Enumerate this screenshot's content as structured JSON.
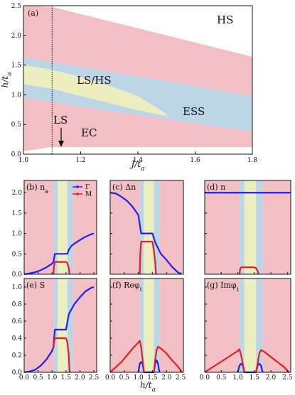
{
  "colors": {
    "pink": "#F2C0C4",
    "blue": "#BCD6E8",
    "yellow": "#EDEEC0",
    "gamma": "#1F1FEF",
    "m": "#E41E1E"
  },
  "chart_data": [
    {
      "id": "a",
      "type": "area",
      "panel_label": "(a)",
      "xlabel": "J/t_a",
      "ylabel": "h/t_a",
      "xlim": [
        1.0,
        1.8
      ],
      "ylim": [
        0.0,
        2.5
      ],
      "xticks": [
        "1.0",
        "1.2",
        "1.4",
        "1.6",
        "1.8"
      ],
      "yticks": [
        "0.0",
        "0.5",
        "1.0",
        "1.5",
        "2.0",
        "2.5"
      ],
      "vline_x": 1.1,
      "region_labels": [
        "HS",
        "LS/HS",
        "ESS",
        "EC",
        "LS"
      ],
      "boundaries": {
        "J": [
          1.0,
          1.1,
          1.2,
          1.3,
          1.4,
          1.5,
          1.6,
          1.7,
          1.8
        ],
        "pink_upper": [
          2.5,
          2.48,
          2.36,
          2.24,
          2.12,
          2.0,
          1.88,
          1.76,
          1.64
        ],
        "blue_upper": [
          1.63,
          1.55,
          1.47,
          1.39,
          1.31,
          1.23,
          1.15,
          1.06,
          0.98
        ],
        "blue_lower": [
          0.95,
          0.88,
          0.8,
          0.73,
          0.66,
          0.59,
          0.52,
          0.45,
          0.38
        ],
        "pink_lower": [
          0.05,
          0.12,
          0.12,
          0.12,
          0.12,
          0.12,
          0.12,
          0.12,
          0.12
        ]
      },
      "yellow_region": {
        "J": [
          1.0,
          1.1,
          1.2,
          1.3,
          1.4,
          1.5
        ],
        "upper": [
          1.5,
          1.42,
          1.3,
          1.15,
          0.98,
          0.68
        ],
        "lower": [
          1.18,
          1.1,
          0.98,
          0.86,
          0.74,
          0.64
        ]
      }
    },
    {
      "id": "b",
      "type": "line",
      "panel_label": "(b) n_a",
      "xlim": [
        0,
        2.6
      ],
      "ylim": [
        0,
        2.3
      ],
      "yticks": [
        "0.0",
        "0.5",
        "1.0",
        "1.5",
        "2.0"
      ],
      "legend": [
        "Γ",
        "M"
      ],
      "bands": [
        [
          0,
          1.05,
          "pink"
        ],
        [
          1.05,
          1.2,
          "blue"
        ],
        [
          1.2,
          1.55,
          "yellow"
        ],
        [
          1.55,
          1.75,
          "blue"
        ],
        [
          1.75,
          2.6,
          "pink"
        ]
      ],
      "series": [
        {
          "name": "Γ",
          "color": "gamma",
          "x": [
            0,
            0.2,
            0.4,
            0.6,
            0.8,
            1.0,
            1.05,
            1.1,
            1.5,
            1.55,
            1.6,
            1.7,
            1.8,
            2.0,
            2.2,
            2.4,
            2.5
          ],
          "y": [
            0,
            0.02,
            0.05,
            0.1,
            0.17,
            0.26,
            0.3,
            0.5,
            0.5,
            0.5,
            0.6,
            0.7,
            0.75,
            0.84,
            0.92,
            0.98,
            1.0
          ]
        },
        {
          "name": "M",
          "color": "m",
          "x": [
            1.05,
            1.07,
            1.1,
            1.5,
            1.55,
            1.6,
            1.63
          ],
          "y": [
            0,
            0.2,
            0.3,
            0.3,
            0.27,
            0.15,
            0
          ]
        }
      ]
    },
    {
      "id": "c",
      "type": "line",
      "panel_label": "(c) Δn",
      "xlim": [
        0,
        2.6
      ],
      "ylim": [
        0,
        2.3
      ],
      "bands": [
        [
          0,
          1.05,
          "pink"
        ],
        [
          1.05,
          1.2,
          "blue"
        ],
        [
          1.2,
          1.55,
          "yellow"
        ],
        [
          1.55,
          1.75,
          "blue"
        ],
        [
          1.75,
          2.6,
          "pink"
        ]
      ],
      "series": [
        {
          "name": "Γ",
          "color": "gamma",
          "x": [
            0,
            0.2,
            0.4,
            0.6,
            0.8,
            1.0,
            1.1,
            1.5,
            1.6,
            1.8,
            2.0,
            2.2,
            2.4,
            2.5
          ],
          "y": [
            2.0,
            1.98,
            1.9,
            1.8,
            1.65,
            1.45,
            1.0,
            1.0,
            0.78,
            0.5,
            0.35,
            0.18,
            0.05,
            0.0
          ]
        },
        {
          "name": "M",
          "color": "m",
          "x": [
            1.05,
            1.07,
            1.1,
            1.5,
            1.55,
            1.6,
            1.63
          ],
          "y": [
            0,
            0.5,
            0.8,
            0.8,
            0.6,
            0.3,
            0
          ]
        }
      ]
    },
    {
      "id": "d",
      "type": "line",
      "panel_label": "(d) n",
      "xlim": [
        0,
        2.6
      ],
      "ylim": [
        0,
        2.3
      ],
      "bands": [
        [
          0,
          1.05,
          "pink"
        ],
        [
          1.05,
          1.2,
          "blue"
        ],
        [
          1.2,
          1.55,
          "yellow"
        ],
        [
          1.55,
          1.75,
          "blue"
        ],
        [
          1.75,
          2.6,
          "pink"
        ]
      ],
      "series": [
        {
          "name": "Γ",
          "color": "gamma",
          "x": [
            0,
            2.6
          ],
          "y": [
            2.0,
            2.0
          ]
        },
        {
          "name": "M",
          "color": "m",
          "x": [
            1.05,
            1.07,
            1.1,
            1.5,
            1.55,
            1.6,
            1.63
          ],
          "y": [
            0,
            0.12,
            0.17,
            0.17,
            0.15,
            0.08,
            0
          ]
        }
      ]
    },
    {
      "id": "e",
      "type": "line",
      "panel_label": "(e) S",
      "xlim": [
        0,
        2.6
      ],
      "ylim": [
        0,
        1.1
      ],
      "yticks": [
        "0.0",
        "0.2",
        "0.4",
        "0.6",
        "0.8",
        "1.0"
      ],
      "xticks": [
        "0.0",
        "0.5",
        "1.0",
        "1.5",
        "2.0",
        "2.5"
      ],
      "bands": [
        [
          0,
          1.05,
          "pink"
        ],
        [
          1.05,
          1.2,
          "blue"
        ],
        [
          1.2,
          1.55,
          "yellow"
        ],
        [
          1.55,
          1.75,
          "blue"
        ],
        [
          1.75,
          2.6,
          "pink"
        ]
      ],
      "series": [
        {
          "name": "Γ",
          "color": "gamma",
          "x": [
            0,
            0.2,
            0.4,
            0.6,
            0.8,
            1.0,
            1.05,
            1.1,
            1.5,
            1.6,
            1.8,
            2.0,
            2.2,
            2.4,
            2.5
          ],
          "y": [
            0,
            0.01,
            0.03,
            0.08,
            0.15,
            0.25,
            0.3,
            0.5,
            0.5,
            0.68,
            0.8,
            0.88,
            0.95,
            0.99,
            1.0
          ]
        },
        {
          "name": "M",
          "color": "m",
          "x": [
            1.05,
            1.07,
            1.1,
            1.5,
            1.55,
            1.6,
            1.63
          ],
          "y": [
            0.28,
            0.34,
            0.4,
            0.4,
            0.35,
            0.2,
            0
          ]
        }
      ]
    },
    {
      "id": "f",
      "type": "line",
      "panel_label": "(f) Reφ_t",
      "xlim": [
        0,
        2.6
      ],
      "ylim": [
        0,
        1.1
      ],
      "xticks": [
        "0.0",
        "0.5",
        "1.0",
        "1.5",
        "2.0",
        "2.5"
      ],
      "bands": [
        [
          0,
          1.05,
          "pink"
        ],
        [
          1.05,
          1.2,
          "blue"
        ],
        [
          1.2,
          1.55,
          "yellow"
        ],
        [
          1.55,
          1.75,
          "blue"
        ],
        [
          1.75,
          2.6,
          "pink"
        ]
      ],
      "series": [
        {
          "name": "Γ",
          "color": "gamma",
          "x": [
            1.0,
            1.05,
            1.1,
            1.15,
            1.2,
            1.55,
            1.6,
            1.65,
            1.7,
            1.75
          ],
          "y": [
            0,
            0.1,
            0.12,
            0.1,
            0,
            0,
            0.1,
            0.14,
            0.1,
            0
          ]
        },
        {
          "name": "M",
          "color": "m",
          "x": [
            0,
            0.2,
            0.4,
            0.6,
            0.8,
            1.0,
            1.05,
            1.1,
            1.15,
            1.2
          ],
          "y": [
            0,
            0.06,
            0.12,
            0.2,
            0.28,
            0.35,
            0.37,
            0.3,
            0.15,
            0
          ]
        },
        {
          "name": "M",
          "color": "m",
          "x": [
            1.55,
            1.6,
            1.65,
            1.7,
            1.8,
            2.0,
            2.2,
            2.4,
            2.55
          ],
          "y": [
            0,
            0.15,
            0.26,
            0.3,
            0.28,
            0.22,
            0.14,
            0.07,
            0
          ]
        }
      ]
    },
    {
      "id": "g",
      "type": "line",
      "panel_label": "(g) Imφ_t",
      "xlim": [
        0,
        2.6
      ],
      "ylim": [
        0,
        1.1
      ],
      "xticks": [
        "0.0",
        "0.5",
        "1.0",
        "1.5",
        "2.0",
        "2.5"
      ],
      "bands": [
        [
          0,
          1.05,
          "pink"
        ],
        [
          1.05,
          1.2,
          "blue"
        ],
        [
          1.2,
          1.55,
          "yellow"
        ],
        [
          1.55,
          1.75,
          "blue"
        ],
        [
          1.75,
          2.6,
          "pink"
        ]
      ],
      "series": [
        {
          "name": "Γ",
          "color": "gamma",
          "x": [
            1.0,
            1.05,
            1.1,
            1.15,
            1.2,
            1.55,
            1.6,
            1.65,
            1.7,
            1.75
          ],
          "y": [
            0,
            0.08,
            0.1,
            0.08,
            0,
            0,
            0.08,
            0.1,
            0.08,
            0
          ]
        },
        {
          "name": "M",
          "color": "m",
          "x": [
            0,
            0.2,
            0.4,
            0.6,
            0.8,
            1.0,
            1.05,
            1.1,
            1.15,
            1.2
          ],
          "y": [
            0,
            0.05,
            0.1,
            0.15,
            0.2,
            0.25,
            0.27,
            0.2,
            0.1,
            0
          ]
        },
        {
          "name": "M",
          "color": "m",
          "x": [
            1.55,
            1.6,
            1.65,
            1.7,
            1.8,
            2.0,
            2.2,
            2.4,
            2.55
          ],
          "y": [
            0,
            0.1,
            0.22,
            0.26,
            0.24,
            0.18,
            0.12,
            0.06,
            0
          ]
        }
      ]
    }
  ],
  "bottom_xlabel": "h/t_a"
}
